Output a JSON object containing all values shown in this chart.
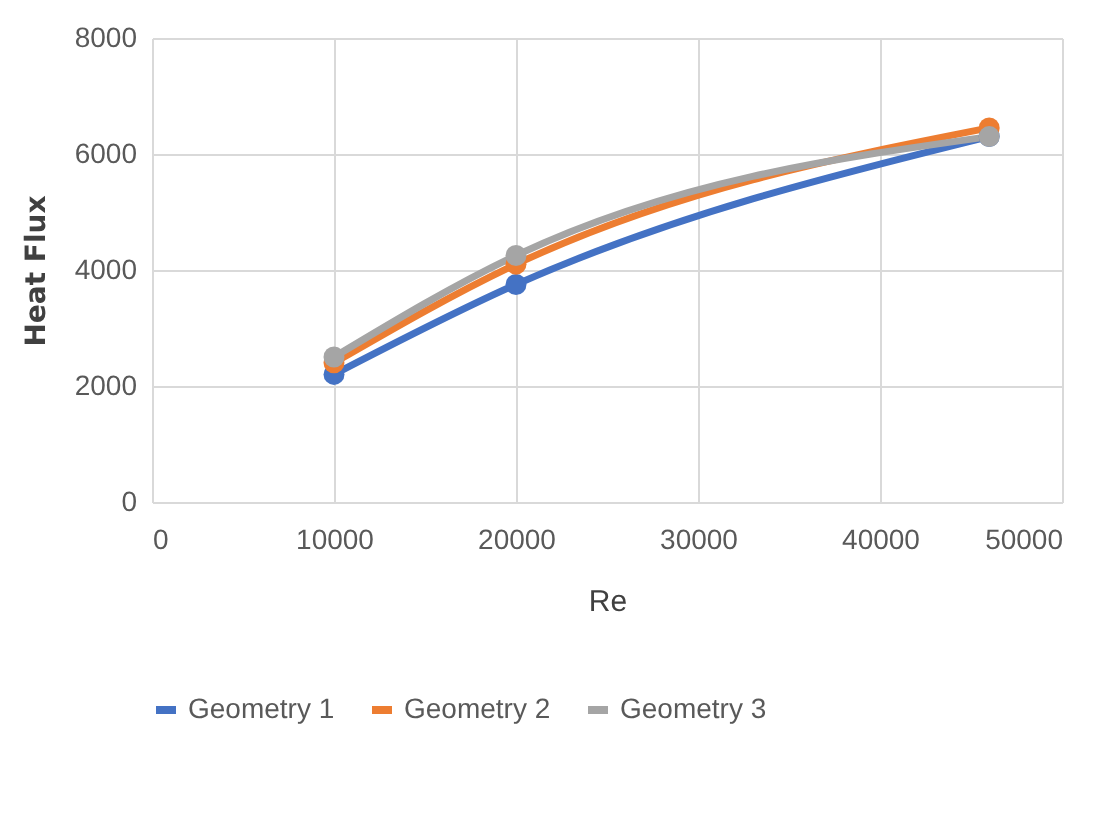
{
  "chart_data": {
    "type": "line",
    "xlabel": "Re",
    "ylabel": "Heat Flux",
    "x": [
      10000,
      20000,
      46000
    ],
    "series": [
      {
        "name": "Geometry 1",
        "color": "#4472c4",
        "values": [
          2200,
          3750,
          6300
        ]
      },
      {
        "name": "Geometry 2",
        "color": "#ed7d31",
        "values": [
          2400,
          4100,
          6450
        ]
      },
      {
        "name": "Geometry 3",
        "color": "#a5a5a5",
        "values": [
          2500,
          4250,
          6300
        ]
      }
    ],
    "xlim": [
      0,
      50000
    ],
    "xticks": [
      0,
      10000,
      20000,
      30000,
      40000,
      50000
    ],
    "ylim": [
      0,
      8000
    ],
    "yticks": [
      0,
      2000,
      4000,
      6000,
      8000
    ],
    "grid": true,
    "legend": "bottom",
    "marker": "circle",
    "line_style": "solid"
  }
}
